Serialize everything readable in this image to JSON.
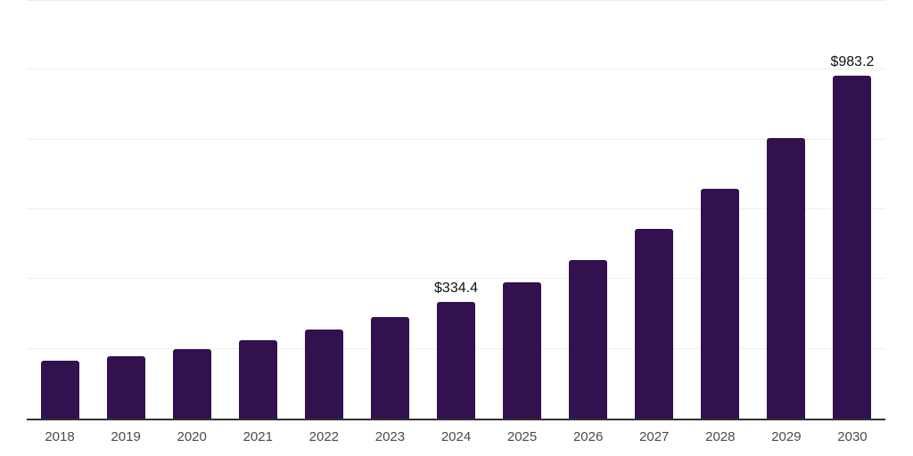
{
  "chart_data": {
    "type": "bar",
    "title": "",
    "xlabel": "",
    "ylabel": "",
    "categories": [
      "2018",
      "2019",
      "2020",
      "2021",
      "2022",
      "2023",
      "2024",
      "2025",
      "2026",
      "2027",
      "2028",
      "2029",
      "2030"
    ],
    "values": [
      165,
      180,
      200,
      225,
      255,
      290,
      334.4,
      390,
      455,
      545,
      660,
      805,
      983.2
    ],
    "value_labels": {
      "2024": "$334.4",
      "2030": "$983.2"
    },
    "ylim": [
      0,
      1200
    ],
    "gridline_values": [
      200,
      400,
      600,
      800,
      1000,
      1200
    ],
    "grid": "horizontal",
    "legend": "none",
    "colors": {
      "bar": "#32114E",
      "gridline": "#efefef",
      "axis_line": "#333333",
      "tick_label": "#4a4a4a",
      "value_label": "#111111",
      "background": "#ffffff"
    }
  }
}
